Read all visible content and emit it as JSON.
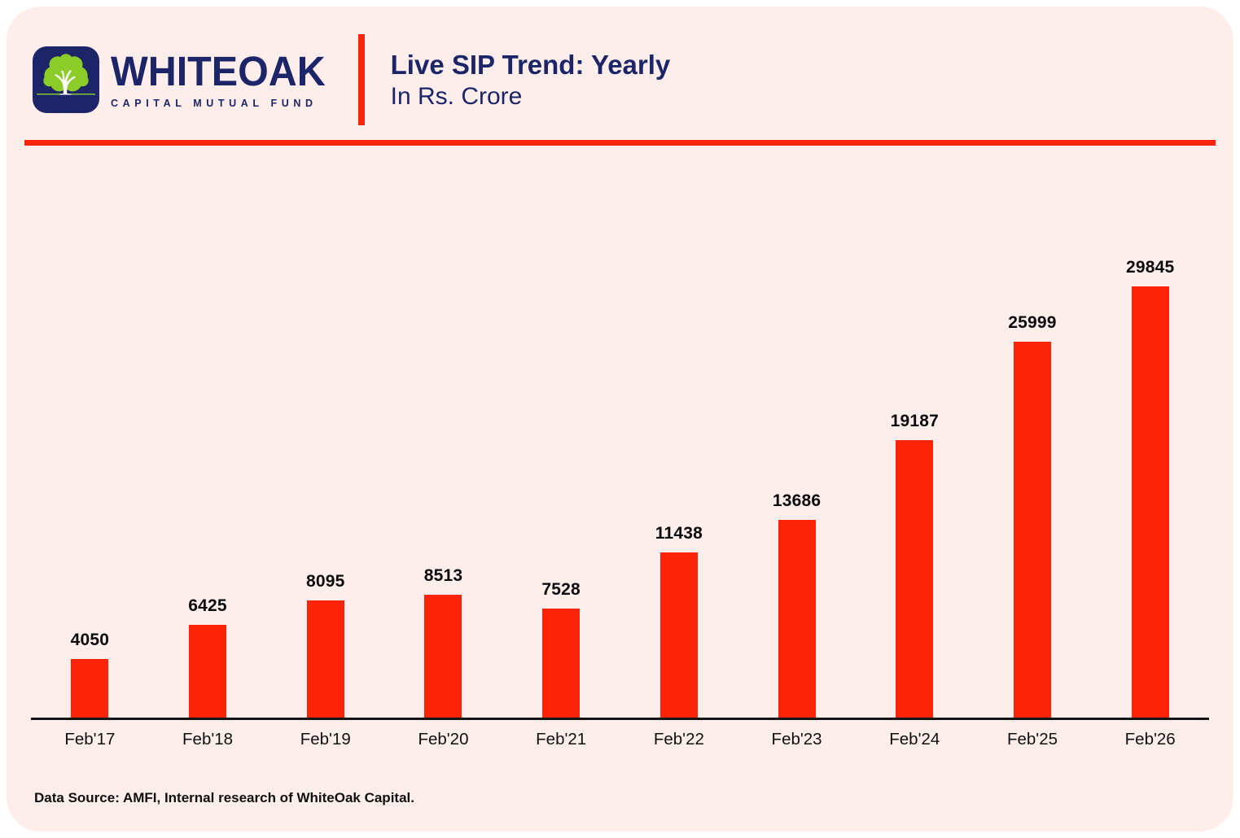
{
  "header": {
    "logo": {
      "brand_name": "WHITEOAK",
      "brand_tagline": "CAPITAL MUTUAL FUND"
    },
    "title": "Live SIP Trend: Yearly",
    "subtitle": "In Rs. Crore"
  },
  "chart_data": {
    "type": "bar",
    "title": "Live SIP Trend: Yearly",
    "unit_label": "In Rs. Crore",
    "categories": [
      "Feb'17",
      "Feb'18",
      "Feb'19",
      "Feb'20",
      "Feb'21",
      "Feb'22",
      "Feb'23",
      "Feb'24",
      "Feb'25",
      "Feb'26"
    ],
    "values": [
      4050,
      6425,
      8095,
      8513,
      7528,
      11438,
      13686,
      19187,
      25999,
      29845
    ],
    "xlabel": "",
    "ylabel": "",
    "ylim": [
      0,
      30500
    ],
    "grid": false,
    "legend_position": "none",
    "data_labels": true,
    "bar_color": "#fb2408"
  },
  "footer": {
    "source_note": "Data Source: AMFI, Internal research of WhiteOak Capital."
  },
  "colors": {
    "accent_red": "#fb2408",
    "brand_navy": "#1d2569",
    "logo_green": "#8ccc29",
    "panel_background": "#fdeeec",
    "text_black": "#111111"
  }
}
